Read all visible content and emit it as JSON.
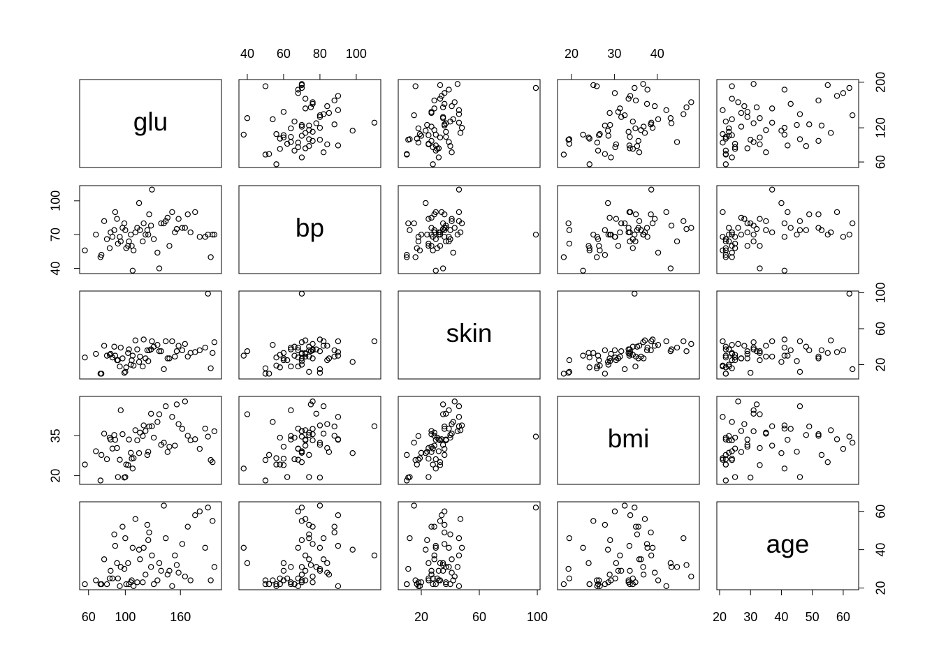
{
  "chart_data": {
    "type": "scatter-matrix",
    "variables": [
      {
        "name": "glu",
        "lim": [
          50.3,
          204.7
        ],
        "xticks": [
          60,
          100,
          160
        ],
        "yticks": [
          60,
          120,
          200
        ],
        "x_axis": "bottom",
        "y_axis": "right"
      },
      {
        "name": "bp",
        "lim": [
          35.4,
          113.5
        ],
        "xticks": [
          40,
          60,
          80,
          100
        ],
        "yticks": [
          40,
          70,
          100
        ],
        "x_axis": "top",
        "y_axis": "left"
      },
      {
        "name": "skin",
        "lim": [
          4.1,
          101.9
        ],
        "xticks": [
          20,
          60,
          100
        ],
        "yticks": [
          20,
          60,
          100
        ],
        "x_axis": "bottom",
        "y_axis": "right"
      },
      {
        "name": "bmi",
        "lim": [
          16.75,
          49.8
        ],
        "xticks": [
          20,
          30,
          40
        ],
        "yticks": [
          20,
          35
        ],
        "x_axis": "top",
        "y_axis": "left"
      },
      {
        "name": "age",
        "lim": [
          19.1,
          65
        ],
        "xticks": [
          20,
          30,
          40,
          50,
          60
        ],
        "yticks": [
          20,
          40,
          60
        ],
        "x_axis": "bottom",
        "y_axis": "right"
      }
    ],
    "rows": [
      [
        86,
        68,
        28,
        30.2,
        25
      ],
      [
        195,
        70,
        33,
        25.1,
        55
      ],
      [
        77,
        82,
        41,
        35.8,
        35
      ],
      [
        165,
        76,
        43,
        47.9,
        26
      ],
      [
        107,
        60,
        25,
        26.4,
        24
      ],
      [
        97,
        76,
        27,
        35.6,
        52
      ],
      [
        83,
        58,
        31,
        34.3,
        25
      ],
      [
        193,
        50,
        16,
        25.9,
        24
      ],
      [
        142,
        80,
        15,
        32.4,
        63
      ],
      [
        128,
        78,
        37,
        43.3,
        31
      ],
      [
        122,
        70,
        27,
        36.8,
        27
      ],
      [
        119,
        64,
        18,
        34.9,
        23
      ],
      [
        56,
        56,
        28,
        24.2,
        22
      ],
      [
        99,
        80,
        11,
        19.3,
        30
      ],
      [
        154,
        72,
        29,
        31.3,
        37
      ],
      [
        103,
        60,
        33,
        24.0,
        33
      ],
      [
        111,
        72,
        47,
        37.1,
        56
      ],
      [
        156,
        75,
        35,
        46.8,
        32
      ],
      [
        176,
        90,
        34,
        33.7,
        58
      ],
      [
        92,
        62,
        25,
        19.5,
        25
      ],
      [
        144,
        82,
        46,
        46.1,
        46
      ],
      [
        135,
        54,
        42,
        40.2,
        24
      ],
      [
        162,
        76,
        36,
        37.6,
        43
      ],
      [
        109,
        56,
        19,
        26.6,
        21
      ],
      [
        73,
        50,
        10,
        18.2,
        22
      ],
      [
        120,
        80,
        48,
        38.9,
        41
      ],
      [
        88,
        74,
        40,
        35.3,
        48
      ],
      [
        151,
        90,
        46,
        42.1,
        21
      ],
      [
        101,
        58,
        17,
        24.2,
        22
      ],
      [
        187,
        68,
        39,
        37.7,
        41
      ],
      [
        115,
        98,
        23,
        28.5,
        40
      ],
      [
        100,
        74,
        12,
        19.5,
        46
      ],
      [
        80,
        66,
        30,
        26.2,
        22
      ],
      [
        171,
        72,
        33,
        33.3,
        24
      ],
      [
        126,
        88,
        36,
        38.5,
        49
      ],
      [
        131,
        66,
        40,
        34.3,
        22
      ],
      [
        95,
        64,
        39,
        44.6,
        31
      ],
      [
        181,
        68,
        36,
        30.1,
        60
      ],
      [
        74,
        52,
        10,
        27.8,
        22
      ],
      [
        146,
        85,
        27,
        28.9,
        27
      ],
      [
        113,
        76,
        37,
        33.3,
        23
      ],
      [
        89,
        90,
        30,
        33.5,
        42
      ],
      [
        197,
        70,
        45,
        36.7,
        31
      ],
      [
        124,
        74,
        36,
        27.8,
        53
      ],
      [
        68,
        70,
        32,
        29.2,
        24
      ],
      [
        139,
        80,
        35,
        31.6,
        29
      ],
      [
        104,
        64,
        37,
        33.6,
        22
      ],
      [
        158,
        84,
        41,
        39.4,
        28
      ],
      [
        91,
        84,
        25,
        30.4,
        33
      ],
      [
        116,
        74,
        29,
        36.2,
        35
      ],
      [
        129,
        110,
        46,
        38.6,
        37
      ],
      [
        84,
        72,
        32,
        33.6,
        29
      ],
      [
        148,
        60,
        27,
        30.9,
        29
      ],
      [
        106,
        70,
        20,
        28.6,
        23
      ],
      [
        190,
        70,
        99,
        34.7,
        62
      ],
      [
        125,
        70,
        24,
        29.0,
        45
      ],
      [
        94,
        68,
        18,
        26.0,
        21
      ],
      [
        168,
        88,
        29,
        35.0,
        52
      ],
      [
        108,
        38,
        30,
        22.7,
        41
      ],
      [
        137,
        40,
        35,
        43.1,
        33
      ]
    ]
  }
}
